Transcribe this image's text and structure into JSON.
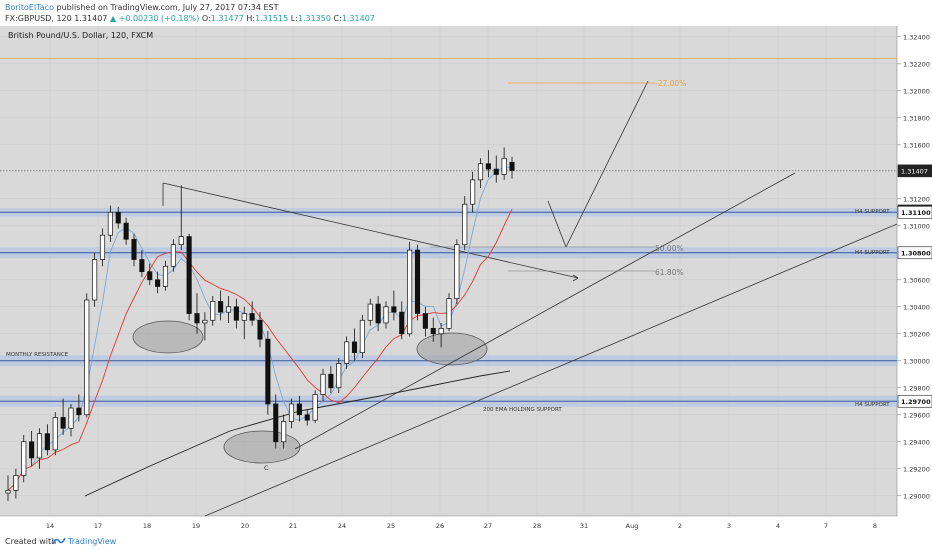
{
  "header": {
    "author": "BoritoElTaco",
    "published_text": "published on TradingView.com, July 27, 2017 07:34 EST",
    "symbol": "FX:GBPUSD, 120",
    "last": "1.31407",
    "change": "▲ +0.00230 (+0.18%)",
    "o_label": "O:",
    "o_value": "1.31477",
    "h_label": "H:",
    "h_value": "1.31515",
    "l_label": "L:",
    "l_value": "1.31350",
    "c_label": "C:",
    "c_value": "1.31407"
  },
  "footer": {
    "created_with": "Created with",
    "brand": "TradingView"
  },
  "chart_data": {
    "type": "candlestick",
    "title": "British Pound/U.S. Dollar, 120, FXCM",
    "y_axis": {
      "position": "right",
      "range": [
        1.2885,
        1.3248
      ],
      "ticks": [
        "1.32400",
        "1.32200",
        "1.32000",
        "1.31800",
        "1.31600",
        "1.31200",
        "1.31000",
        "1.30600",
        "1.30400",
        "1.30200",
        "1.30000",
        "1.29800",
        "1.29600",
        "1.29400",
        "1.29200",
        "1.29000"
      ]
    },
    "x_axis": {
      "ticks": [
        "14",
        "17",
        "18",
        "19",
        "20",
        "21",
        "24",
        "25",
        "26",
        "27",
        "28",
        "31",
        "Aug",
        "2",
        "3",
        "4",
        "7",
        "8"
      ]
    },
    "price_labels": [
      {
        "value": 1.31407,
        "text": "1.31407",
        "style": "current"
      },
      {
        "value": 1.3111,
        "text": "25:10",
        "style": "countdown"
      },
      {
        "value": 1.311,
        "text": "1.31100",
        "style": "level"
      },
      {
        "value": 1.308,
        "text": "1.30800",
        "style": "level"
      },
      {
        "value": 1.297,
        "text": "1.29700",
        "style": "level"
      }
    ],
    "levels": [
      {
        "name": "H4 SUPPORT",
        "value": 1.311,
        "band": [
          1.3107,
          1.3113
        ]
      },
      {
        "name": "",
        "value": 1.308,
        "band": [
          1.3076,
          1.3084
        ],
        "fib_text": "50.00%"
      },
      {
        "name": "H4 SUPPORT",
        "value": 1.308
      },
      {
        "name": "MONTHLY RESISTANCE",
        "value": 1.3,
        "band": [
          1.2996,
          1.3004
        ]
      },
      {
        "name": "H4 SUPPORT",
        "value": 1.297,
        "band": [
          1.2966,
          1.2974
        ]
      }
    ],
    "annotations": {
      "fib_top": "-27.00%",
      "fib_top_value": 1.32,
      "fib_618": "61.80%",
      "fib_618_value": 1.3064,
      "ema_label": "200 EMA HOLDING SUPPORT",
      "point_c": "C",
      "orange_line_value": 1.3224
    },
    "candles": [
      [
        1.2902,
        1.2915,
        1.2896,
        1.2904
      ],
      [
        1.2904,
        1.292,
        1.2898,
        1.2915
      ],
      [
        1.2915,
        1.2945,
        1.291,
        1.294
      ],
      [
        1.294,
        1.2948,
        1.2922,
        1.2928
      ],
      [
        1.2928,
        1.295,
        1.292,
        1.2946
      ],
      [
        1.2946,
        1.2953,
        1.293,
        1.2934
      ],
      [
        1.2934,
        1.2962,
        1.293,
        1.2958
      ],
      [
        1.2958,
        1.2972,
        1.2945,
        1.295
      ],
      [
        1.295,
        1.2968,
        1.2944,
        1.2965
      ],
      [
        1.2965,
        1.2975,
        1.2955,
        1.296
      ],
      [
        1.296,
        1.305,
        1.2958,
        1.3045
      ],
      [
        1.3045,
        1.308,
        1.304,
        1.3075
      ],
      [
        1.3075,
        1.3098,
        1.307,
        1.3093
      ],
      [
        1.3093,
        1.3115,
        1.3088,
        1.311
      ],
      [
        1.311,
        1.3114,
        1.3098,
        1.3102
      ],
      [
        1.3102,
        1.3106,
        1.3086,
        1.309
      ],
      [
        1.309,
        1.3094,
        1.307,
        1.3075
      ],
      [
        1.3075,
        1.3082,
        1.3062,
        1.3066
      ],
      [
        1.3066,
        1.3072,
        1.3056,
        1.306
      ],
      [
        1.306,
        1.3066,
        1.305,
        1.3055
      ],
      [
        1.3055,
        1.3074,
        1.3052,
        1.307
      ],
      [
        1.307,
        1.309,
        1.3066,
        1.3086
      ],
      [
        1.3086,
        1.313,
        1.3082,
        1.3092
      ],
      [
        1.3092,
        1.3094,
        1.303,
        1.3035
      ],
      [
        1.3035,
        1.305,
        1.302,
        1.3028
      ],
      [
        1.3028,
        1.3036,
        1.3015,
        1.303
      ],
      [
        1.303,
        1.3048,
        1.3026,
        1.3044
      ],
      [
        1.3044,
        1.3052,
        1.303,
        1.3036
      ],
      [
        1.3036,
        1.3048,
        1.3028,
        1.304
      ],
      [
        1.304,
        1.3046,
        1.3024,
        1.303
      ],
      [
        1.303,
        1.304,
        1.3016,
        1.3035
      ],
      [
        1.3035,
        1.3044,
        1.3026,
        1.303
      ],
      [
        1.303,
        1.3036,
        1.301,
        1.3016
      ],
      [
        1.3016,
        1.3022,
        1.296,
        1.2968
      ],
      [
        1.2968,
        1.2975,
        1.2935,
        1.294
      ],
      [
        1.294,
        1.296,
        1.2935,
        1.2955
      ],
      [
        1.2955,
        1.2972,
        1.295,
        1.2968
      ],
      [
        1.2968,
        1.2974,
        1.2955,
        1.296
      ],
      [
        1.296,
        1.2964,
        1.2952,
        1.2956
      ],
      [
        1.2956,
        1.2978,
        1.2954,
        1.2975
      ],
      [
        1.2975,
        1.2994,
        1.297,
        1.299
      ],
      [
        1.299,
        1.2996,
        1.2976,
        1.298
      ],
      [
        1.298,
        1.3002,
        1.2976,
        1.2998
      ],
      [
        1.2998,
        1.3018,
        1.2994,
        1.3014
      ],
      [
        1.3014,
        1.3024,
        1.3,
        1.3006
      ],
      [
        1.3006,
        1.3034,
        1.3002,
        1.303
      ],
      [
        1.303,
        1.3046,
        1.3026,
        1.3042
      ],
      [
        1.3042,
        1.3048,
        1.3022,
        1.3028
      ],
      [
        1.3028,
        1.3044,
        1.3024,
        1.304
      ],
      [
        1.304,
        1.3052,
        1.303,
        1.3036
      ],
      [
        1.3036,
        1.3044,
        1.3016,
        1.302
      ],
      [
        1.302,
        1.3088,
        1.3018,
        1.3082
      ],
      [
        1.3082,
        1.3086,
        1.303,
        1.3035
      ],
      [
        1.3035,
        1.304,
        1.3018,
        1.3024
      ],
      [
        1.3024,
        1.3032,
        1.3014,
        1.302
      ],
      [
        1.302,
        1.3028,
        1.301,
        1.3024
      ],
      [
        1.3024,
        1.305,
        1.3022,
        1.3046
      ],
      [
        1.3046,
        1.309,
        1.3042,
        1.3086
      ],
      [
        1.3086,
        1.3122,
        1.3082,
        1.3116
      ],
      [
        1.3116,
        1.314,
        1.311,
        1.3134
      ],
      [
        1.3134,
        1.315,
        1.3128,
        1.3146
      ],
      [
        1.3146,
        1.3156,
        1.3136,
        1.3142
      ],
      [
        1.3142,
        1.3152,
        1.3132,
        1.3138
      ],
      [
        1.3138,
        1.3158,
        1.3134,
        1.315
      ],
      [
        1.3147,
        1.3151,
        1.3135,
        1.3141
      ]
    ]
  }
}
